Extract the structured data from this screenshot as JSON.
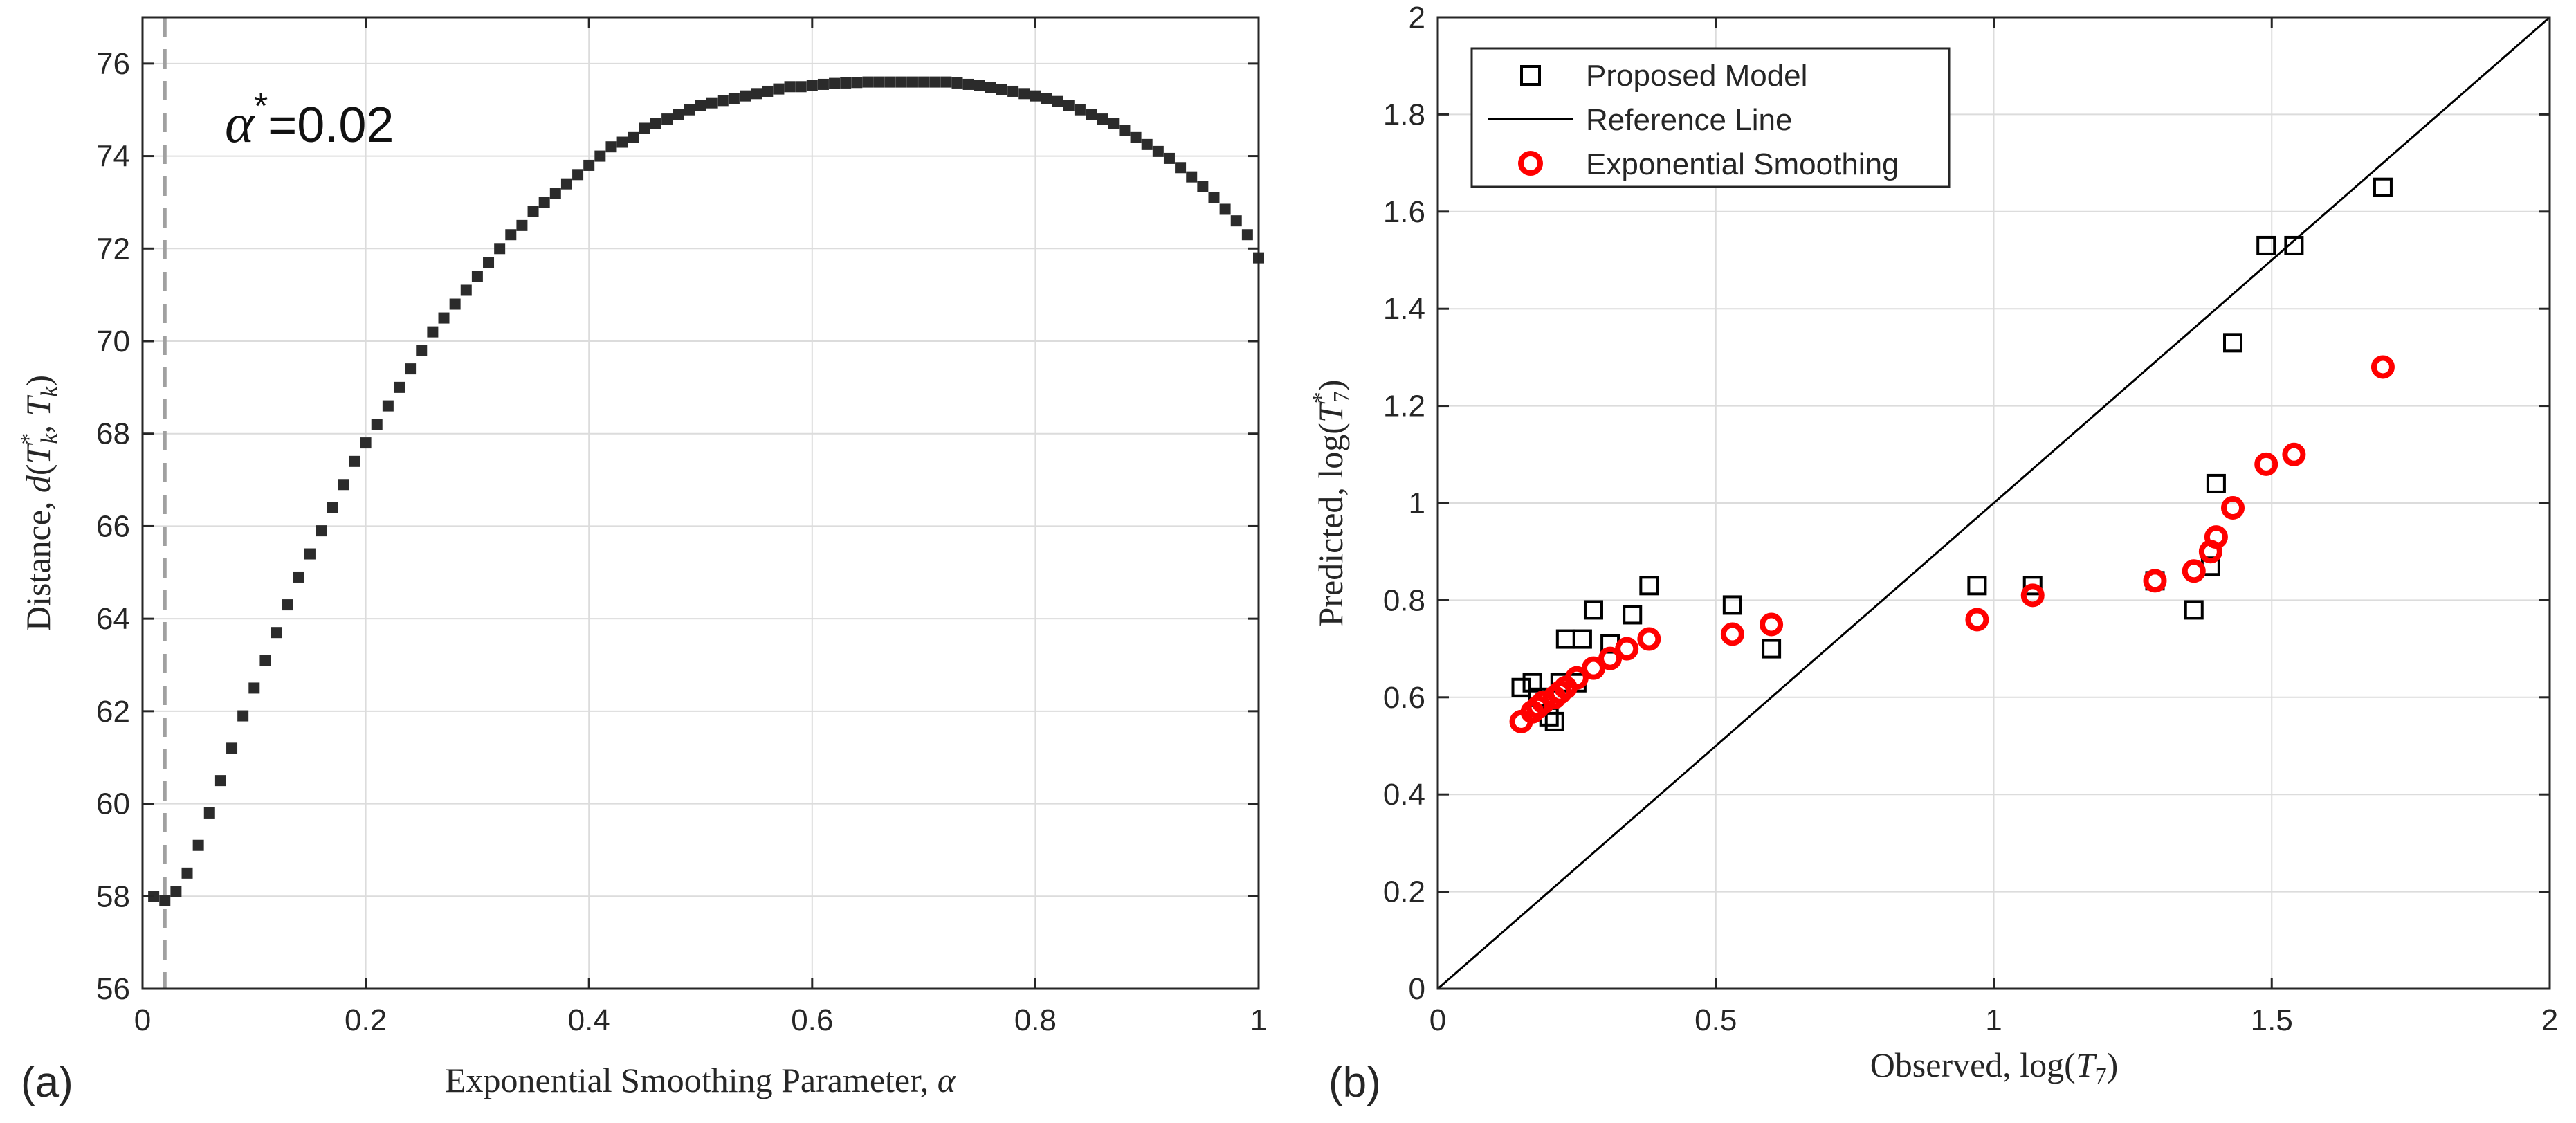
{
  "colors": {
    "axes": "#262626",
    "grid": "#dcdcdc",
    "marker_dark": "#2b2b2b",
    "marker_red": "#ff0000",
    "dashed": "#a0a0a0",
    "reference": "#000000"
  },
  "panels": {
    "a": {
      "label": "(a)",
      "annotation": "α*=0.02",
      "alpha_star": 0.02,
      "xlabel": "Exponential Smoothing Parameter, α",
      "ylabel": "Distance, d(T*k, Tk)"
    },
    "b": {
      "label": "(b)",
      "xlabel": "Observed, log(T7)",
      "ylabel": "Predicted, log(T*7)"
    }
  },
  "chart_data": [
    {
      "type": "scatter",
      "panel": "a",
      "xlim": [
        0,
        1
      ],
      "ylim": [
        56,
        77
      ],
      "xticks": [
        0,
        0.2,
        0.4,
        0.6,
        0.8,
        1
      ],
      "xtick_labels": [
        "0",
        "0.2",
        "0.4",
        "0.6",
        "0.8",
        "1"
      ],
      "yticks": [
        56,
        58,
        60,
        62,
        64,
        66,
        68,
        70,
        72,
        74,
        76
      ],
      "ytick_labels": [
        "56",
        "58",
        "60",
        "62",
        "64",
        "66",
        "68",
        "70",
        "72",
        "74",
        "76"
      ],
      "grid": true,
      "marker": "filled-square",
      "reference_vline_x": 0.02,
      "series": [
        {
          "x": [
            0.01,
            0.02,
            0.03,
            0.04,
            0.05,
            0.06,
            0.07,
            0.08,
            0.09,
            0.1,
            0.11,
            0.12,
            0.13,
            0.14,
            0.15,
            0.16,
            0.17,
            0.18,
            0.19,
            0.2,
            0.21,
            0.22,
            0.23,
            0.24,
            0.25,
            0.26,
            0.27,
            0.28,
            0.29,
            0.3,
            0.31,
            0.32,
            0.33,
            0.34,
            0.35,
            0.36,
            0.37,
            0.38,
            0.39,
            0.4,
            0.41,
            0.42,
            0.43,
            0.44,
            0.45,
            0.46,
            0.47,
            0.48,
            0.49,
            0.5,
            0.51,
            0.52,
            0.53,
            0.54,
            0.55,
            0.56,
            0.57,
            0.58,
            0.59,
            0.6,
            0.61,
            0.62,
            0.63,
            0.64,
            0.65,
            0.66,
            0.67,
            0.68,
            0.69,
            0.7,
            0.71,
            0.72,
            0.73,
            0.74,
            0.75,
            0.76,
            0.77,
            0.78,
            0.79,
            0.8,
            0.81,
            0.82,
            0.83,
            0.84,
            0.85,
            0.86,
            0.87,
            0.88,
            0.89,
            0.9,
            0.91,
            0.92,
            0.93,
            0.94,
            0.95,
            0.96,
            0.97,
            0.98,
            0.99,
            1.0
          ],
          "y": [
            58.0,
            57.9,
            58.1,
            58.5,
            59.1,
            59.8,
            60.5,
            61.2,
            61.9,
            62.5,
            63.1,
            63.7,
            64.3,
            64.9,
            65.4,
            65.9,
            66.4,
            66.9,
            67.4,
            67.8,
            68.2,
            68.6,
            69.0,
            69.4,
            69.8,
            70.2,
            70.5,
            70.8,
            71.1,
            71.4,
            71.7,
            72.0,
            72.3,
            72.5,
            72.8,
            73.0,
            73.2,
            73.4,
            73.6,
            73.8,
            74.0,
            74.2,
            74.3,
            74.4,
            74.6,
            74.7,
            74.8,
            74.9,
            75.0,
            75.1,
            75.15,
            75.2,
            75.25,
            75.3,
            75.35,
            75.4,
            75.45,
            75.5,
            75.5,
            75.52,
            75.55,
            75.57,
            75.58,
            75.59,
            75.6,
            75.6,
            75.6,
            75.6,
            75.6,
            75.6,
            75.6,
            75.6,
            75.58,
            75.55,
            75.52,
            75.48,
            75.44,
            75.4,
            75.35,
            75.3,
            75.25,
            75.18,
            75.1,
            75.0,
            74.9,
            74.8,
            74.7,
            74.55,
            74.4,
            74.25,
            74.1,
            73.95,
            73.75,
            73.55,
            73.35,
            73.1,
            72.85,
            72.6,
            72.3,
            71.8
          ]
        }
      ]
    },
    {
      "type": "scatter",
      "panel": "b",
      "xlim": [
        0,
        2
      ],
      "ylim": [
        0,
        2
      ],
      "xticks": [
        0,
        0.5,
        1,
        1.5,
        2
      ],
      "xtick_labels": [
        "0",
        "0.5",
        "1",
        "1.5",
        "2"
      ],
      "yticks": [
        0,
        0.2,
        0.4,
        0.6,
        0.8,
        1,
        1.2,
        1.4,
        1.6,
        1.8,
        2
      ],
      "ytick_labels": [
        "0",
        "0.2",
        "0.4",
        "0.6",
        "0.8",
        "1",
        "1.2",
        "1.4",
        "1.6",
        "1.8",
        "2"
      ],
      "grid": true,
      "legend_position": "top-left",
      "series": [
        {
          "name": "Proposed Model",
          "marker": "open-square",
          "x": [
            0.15,
            0.17,
            0.18,
            0.2,
            0.21,
            0.22,
            0.23,
            0.25,
            0.26,
            0.28,
            0.31,
            0.35,
            0.38,
            0.53,
            0.6,
            0.97,
            1.07,
            1.29,
            1.36,
            1.39,
            1.4,
            1.43,
            1.49,
            1.54,
            1.7
          ],
          "y": [
            0.62,
            0.63,
            0.6,
            0.56,
            0.55,
            0.63,
            0.72,
            0.63,
            0.72,
            0.78,
            0.71,
            0.77,
            0.83,
            0.79,
            0.7,
            0.83,
            0.83,
            0.84,
            0.78,
            0.87,
            1.04,
            1.33,
            1.53,
            1.53,
            1.65
          ]
        },
        {
          "name": "Reference Line",
          "type": "line",
          "x": [
            0,
            2
          ],
          "y": [
            0,
            2
          ]
        },
        {
          "name": "Exponential Smoothing",
          "marker": "open-circle",
          "x": [
            0.15,
            0.17,
            0.18,
            0.19,
            0.21,
            0.22,
            0.23,
            0.25,
            0.28,
            0.31,
            0.34,
            0.38,
            0.53,
            0.6,
            0.97,
            1.07,
            1.29,
            1.36,
            1.39,
            1.4,
            1.43,
            1.49,
            1.54,
            1.7
          ],
          "y": [
            0.55,
            0.57,
            0.58,
            0.59,
            0.6,
            0.61,
            0.62,
            0.64,
            0.66,
            0.68,
            0.7,
            0.72,
            0.73,
            0.75,
            0.76,
            0.81,
            0.84,
            0.86,
            0.9,
            0.93,
            0.99,
            1.08,
            1.1,
            1.28
          ]
        }
      ]
    }
  ]
}
